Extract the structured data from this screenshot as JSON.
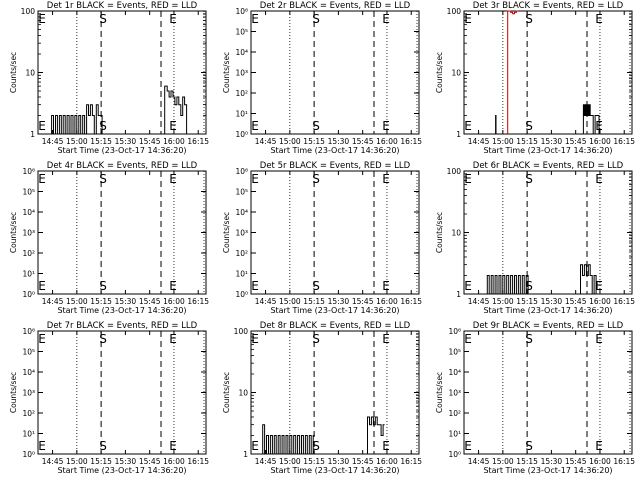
{
  "y_axis_label": "Counts/sec",
  "colors": {
    "events": "#000000",
    "lld": "#cc0000",
    "axes": "#000000",
    "background": "#ffffff"
  },
  "chart_data": [
    {
      "type": "line",
      "title": "Det 1r BLACK = Events, RED = LLD",
      "xlabel": "Start Time (23-Oct-17 14:36:20)",
      "ylabel": "Counts/sec",
      "x_ticks": [
        "14:45",
        "15:00",
        "15:15",
        "15:30",
        "15:45",
        "16:00",
        "16:15"
      ],
      "y_scale": "log",
      "ylim": [
        1,
        100
      ],
      "y_ticks": [
        "1",
        "10",
        "100"
      ],
      "markers": {
        "S": "15:15",
        "E": "15:52"
      },
      "series": [
        {
          "values": [
            [
              14.72,
              1
            ],
            [
              14.74,
              2
            ],
            [
              14.76,
              1
            ],
            [
              14.78,
              2
            ],
            [
              14.8,
              1
            ],
            [
              14.82,
              2
            ],
            [
              14.84,
              1
            ],
            [
              14.86,
              2
            ],
            [
              14.88,
              1
            ],
            [
              14.9,
              2
            ],
            [
              14.92,
              1
            ],
            [
              14.94,
              2
            ],
            [
              14.96,
              1
            ],
            [
              14.98,
              2
            ],
            [
              15.0,
              1
            ],
            [
              15.02,
              2
            ],
            [
              15.04,
              1
            ],
            [
              15.06,
              2
            ],
            [
              15.08,
              1
            ],
            [
              15.1,
              3
            ],
            [
              15.12,
              2
            ],
            [
              15.14,
              3
            ],
            [
              15.16,
              2
            ],
            [
              15.18,
              1
            ],
            [
              15.2,
              3
            ],
            [
              15.22,
              2
            ],
            [
              15.24,
              2
            ],
            [
              15.26,
              1
            ]
          ]
        },
        {
          "values": [
            [
              15.905,
              6
            ],
            [
              15.93,
              5
            ],
            [
              15.95,
              4
            ],
            [
              15.97,
              5
            ],
            [
              15.99,
              4
            ],
            [
              16.01,
              3
            ],
            [
              16.03,
              4
            ],
            [
              16.05,
              3
            ],
            [
              16.07,
              2
            ],
            [
              16.09,
              4
            ],
            [
              16.11,
              3
            ],
            [
              16.13,
              1
            ]
          ]
        }
      ]
    },
    {
      "type": "line",
      "title": "Det 2r BLACK = Events, RED = LLD",
      "xlabel": "Start Time (23-Oct-17 14:36:20)",
      "ylabel": "Counts/sec",
      "x_ticks": [
        "14:45",
        "15:00",
        "15:15",
        "15:30",
        "15:45",
        "16:00",
        "16:15"
      ],
      "y_scale": "log",
      "ylim": [
        1,
        1000000
      ],
      "y_ticks": [
        "10⁰",
        "10¹",
        "10²",
        "10³",
        "10⁴",
        "10⁵",
        "10⁶"
      ],
      "markers": {
        "S": "15:15",
        "E": "15:52"
      },
      "series": []
    },
    {
      "type": "line",
      "title": "Det 3r BLACK = Events, RED = LLD",
      "xlabel": "Start Time (23-Oct-17 14:36:20)",
      "ylabel": "Counts/sec",
      "x_ticks": [
        "14:45",
        "15:00",
        "15:15",
        "15:30",
        "15:45",
        "16:00",
        "16:15"
      ],
      "y_scale": "log",
      "ylim": [
        1,
        100
      ],
      "y_ticks": [
        "1",
        "10",
        "100"
      ],
      "markers": {
        "S": "15:15",
        "E": "15:52"
      },
      "series": [
        {
          "values": [
            [
              14.92,
              1
            ],
            [
              14.925,
              2
            ],
            [
              14.93,
              1
            ]
          ]
        },
        {
          "values": [
            [
              15.82,
              1
            ],
            [
              15.83,
              3
            ],
            [
              15.84,
              2
            ],
            [
              15.85,
              3
            ],
            [
              15.86,
              2
            ],
            [
              15.87,
              3
            ],
            [
              15.88,
              2
            ],
            [
              15.89,
              3
            ],
            [
              15.9,
              2
            ],
            [
              15.91,
              2
            ],
            [
              15.93,
              1
            ],
            [
              15.95,
              2
            ],
            [
              15.97,
              2
            ],
            [
              15.99,
              1
            ]
          ]
        },
        {
          "color": "#cc0000",
          "values": [
            [
              15.05,
              100
            ],
            [
              15.08,
              95
            ],
            [
              15.1,
              90
            ],
            [
              15.12,
              95
            ],
            [
              15.14,
              100
            ]
          ]
        }
      ]
    },
    {
      "type": "line",
      "title": "Det 4r BLACK = Events, RED = LLD",
      "xlabel": "Start Time (23-Oct-17 14:36:20)",
      "ylabel": "Counts/sec",
      "x_ticks": [
        "14:45",
        "15:00",
        "15:15",
        "15:30",
        "15:45",
        "16:00",
        "16:15"
      ],
      "y_scale": "log",
      "ylim": [
        1,
        1000000
      ],
      "y_ticks": [
        "10⁰",
        "10¹",
        "10²",
        "10³",
        "10⁴",
        "10⁵",
        "10⁶"
      ],
      "markers": {
        "S": "15:15",
        "E": "15:52"
      },
      "series": []
    },
    {
      "type": "line",
      "title": "Det 5r BLACK = Events, RED = LLD",
      "xlabel": "Start Time (23-Oct-17 14:36:20)",
      "ylabel": "Counts/sec",
      "x_ticks": [
        "14:45",
        "15:00",
        "15:15",
        "15:30",
        "15:45",
        "16:00",
        "16:15"
      ],
      "y_scale": "log",
      "ylim": [
        1,
        1000000
      ],
      "y_ticks": [
        "10⁰",
        "10¹",
        "10²",
        "10³",
        "10⁴",
        "10⁵",
        "10⁶"
      ],
      "markers": {
        "S": "15:15",
        "E": "15:52"
      },
      "series": []
    },
    {
      "type": "line",
      "title": "Det 6r BLACK = Events, RED = LLD",
      "xlabel": "Start Time (23-Oct-17 14:36:20)",
      "ylabel": "Counts/sec",
      "x_ticks": [
        "14:45",
        "15:00",
        "15:15",
        "15:30",
        "15:45",
        "16:00",
        "16:15"
      ],
      "y_scale": "log",
      "ylim": [
        1,
        100
      ],
      "y_ticks": [
        "1",
        "10",
        "100"
      ],
      "markers": {
        "S": "15:15",
        "E": "15:52"
      },
      "series": [
        {
          "values": [
            [
              14.82,
              1
            ],
            [
              14.84,
              2
            ],
            [
              14.86,
              1
            ],
            [
              14.88,
              2
            ],
            [
              14.9,
              1
            ],
            [
              14.92,
              2
            ],
            [
              14.94,
              1
            ],
            [
              14.96,
              2
            ],
            [
              14.98,
              1
            ],
            [
              15.0,
              2
            ],
            [
              15.02,
              1
            ],
            [
              15.04,
              2
            ],
            [
              15.06,
              1
            ],
            [
              15.08,
              2
            ],
            [
              15.1,
              1
            ],
            [
              15.12,
              2
            ],
            [
              15.14,
              1
            ],
            [
              15.16,
              2
            ],
            [
              15.18,
              1
            ],
            [
              15.2,
              2
            ],
            [
              15.22,
              1
            ],
            [
              15.24,
              2
            ],
            [
              15.26,
              1
            ]
          ]
        },
        {
          "values": [
            [
              15.8,
              3
            ],
            [
              15.82,
              2
            ],
            [
              15.84,
              3
            ],
            [
              15.86,
              2
            ],
            [
              15.88,
              3
            ],
            [
              15.9,
              2
            ],
            [
              15.92,
              1
            ],
            [
              15.94,
              2
            ],
            [
              15.96,
              1
            ]
          ]
        }
      ]
    },
    {
      "type": "line",
      "title": "Det 7r BLACK = Events, RED = LLD",
      "xlabel": "Start Time (23-Oct-17 14:36:20)",
      "ylabel": "Counts/sec",
      "x_ticks": [
        "14:45",
        "15:00",
        "15:15",
        "15:30",
        "15:45",
        "16:00",
        "16:15"
      ],
      "y_scale": "log",
      "ylim": [
        1,
        1000000
      ],
      "y_ticks": [
        "10⁰",
        "10¹",
        "10²",
        "10³",
        "10⁴",
        "10⁵",
        "10⁶"
      ],
      "markers": {
        "S": "15:15",
        "E": "15:52"
      },
      "series": []
    },
    {
      "type": "line",
      "title": "Det 8r BLACK = Events, RED = LLD",
      "xlabel": "Start Time (23-Oct-17 14:36:20)",
      "ylabel": "Counts/sec",
      "x_ticks": [
        "14:45",
        "15:00",
        "15:15",
        "15:30",
        "15:45",
        "16:00",
        "16:15"
      ],
      "y_scale": "log",
      "ylim": [
        1,
        100
      ],
      "y_ticks": [
        "1",
        "10",
        "100"
      ],
      "markers": {
        "S": "15:15",
        "E": "15:52"
      },
      "series": [
        {
          "values": [
            [
              14.72,
              3
            ],
            [
              14.74,
              1
            ],
            [
              14.76,
              2
            ],
            [
              14.78,
              1
            ],
            [
              14.8,
              2
            ],
            [
              14.82,
              1
            ],
            [
              14.84,
              2
            ],
            [
              14.86,
              1
            ],
            [
              14.88,
              2
            ],
            [
              14.9,
              1
            ],
            [
              14.92,
              2
            ],
            [
              14.94,
              1
            ],
            [
              14.96,
              2
            ],
            [
              14.98,
              1
            ],
            [
              15.0,
              2
            ],
            [
              15.02,
              1
            ],
            [
              15.04,
              2
            ],
            [
              15.06,
              1
            ],
            [
              15.08,
              2
            ],
            [
              15.1,
              1
            ],
            [
              15.12,
              2
            ],
            [
              15.14,
              1
            ],
            [
              15.16,
              2
            ],
            [
              15.18,
              1
            ],
            [
              15.2,
              2
            ],
            [
              15.22,
              1
            ],
            [
              15.24,
              2
            ]
          ]
        },
        {
          "values": [
            [
              15.8,
              4
            ],
            [
              15.82,
              3
            ],
            [
              15.84,
              4
            ],
            [
              15.86,
              3
            ],
            [
              15.88,
              4
            ],
            [
              15.9,
              3
            ],
            [
              15.92,
              3
            ],
            [
              15.94,
              2
            ],
            [
              15.96,
              3
            ]
          ]
        }
      ]
    },
    {
      "type": "line",
      "title": "Det 9r BLACK = Events, RED = LLD",
      "xlabel": "Start Time (23-Oct-17 14:36:20)",
      "ylabel": "Counts/sec",
      "x_ticks": [
        "14:45",
        "15:00",
        "15:15",
        "15:30",
        "15:45",
        "16:00",
        "16:15"
      ],
      "y_scale": "log",
      "ylim": [
        1,
        1000000
      ],
      "y_ticks": [
        "10⁰",
        "10¹",
        "10²",
        "10³",
        "10⁴",
        "10⁵",
        "10⁶"
      ],
      "markers": {
        "S": "15:15",
        "E": "15:52"
      },
      "series": []
    }
  ]
}
